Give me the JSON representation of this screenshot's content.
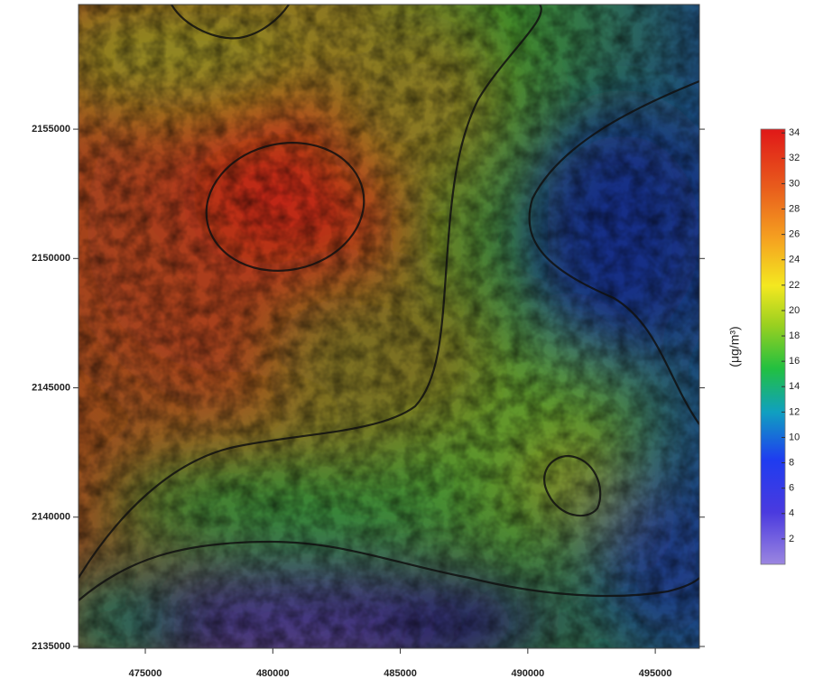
{
  "map": {
    "x_axis": {
      "lim": [
        472380,
        496730
      ],
      "ticks": [
        475000,
        480000,
        485000,
        490000,
        495000
      ]
    },
    "y_axis": {
      "lim": [
        2134930,
        2159820
      ],
      "ticks": [
        2135000,
        2140000,
        2145000,
        2150000,
        2155000
      ]
    },
    "colorbar": {
      "label": "(μg/m³)",
      "lim": [
        0,
        34.3
      ],
      "ticks": [
        2,
        4,
        6,
        8,
        10,
        12,
        14,
        16,
        18,
        20,
        22,
        24,
        26,
        28,
        30,
        32,
        34
      ]
    }
  }
}
